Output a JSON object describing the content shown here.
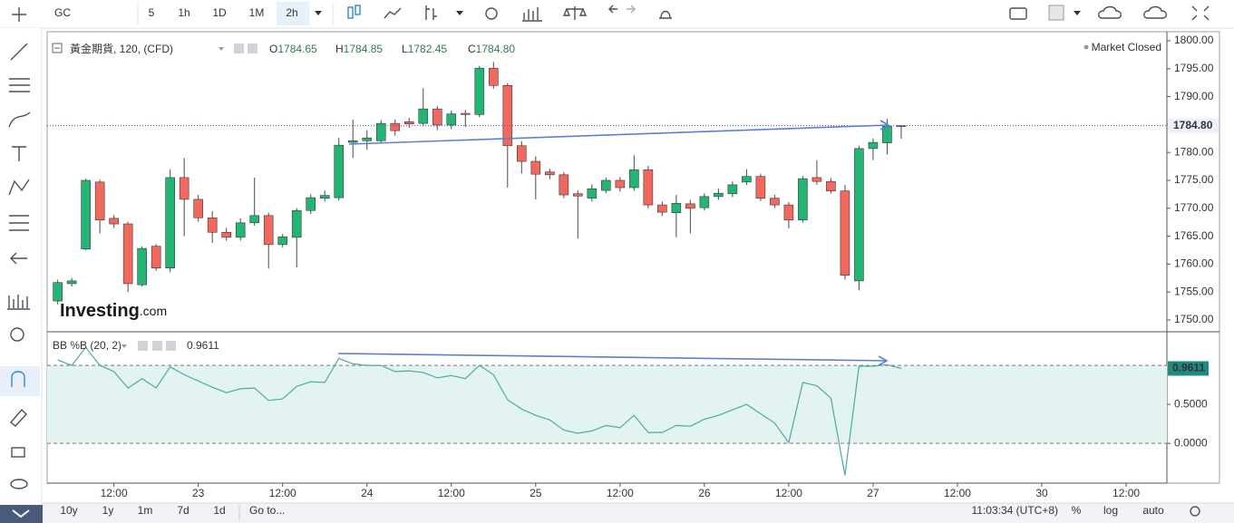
{
  "toolbar": {
    "symbol": "GC",
    "intervals": [
      "5",
      "1h",
      "1D",
      "1M",
      "2h"
    ],
    "active_interval": 4
  },
  "legend": {
    "title": "黃金期貨, 120, (CFD)",
    "ohlc": [
      {
        "label": "O",
        "value": "1784.65"
      },
      {
        "label": "H",
        "value": "1784.85"
      },
      {
        "label": "L",
        "value": "1782.45"
      },
      {
        "label": "C",
        "value": "1784.80"
      }
    ]
  },
  "market_status": "Market Closed",
  "watermark": {
    "brand": "Investing",
    "suffix": ".com"
  },
  "chart_data": [
    {
      "type": "candlestick",
      "x": [
        -20,
        -18,
        -16,
        -14,
        -12,
        -10,
        -8,
        -6,
        -4,
        -2,
        0,
        2,
        4,
        6,
        8,
        10,
        12,
        14,
        16,
        18,
        20,
        22,
        24,
        26,
        28,
        30,
        32,
        34,
        36,
        38,
        40,
        42,
        44,
        46,
        48,
        50,
        52,
        54,
        56,
        58,
        60,
        62,
        64,
        66,
        68,
        70,
        72,
        74,
        76,
        78,
        80,
        82,
        84,
        86,
        88,
        90,
        92,
        94,
        96,
        98,
        100
      ],
      "open": [
        1753.4,
        1756.5,
        1762.7,
        1774.7,
        1768.2,
        1767.2,
        1756.3,
        1763.2,
        1759.3,
        1775.5,
        1771.6,
        1768.3,
        1765.7,
        1764.8,
        1767.4,
        1768.7,
        1763.5,
        1764.8,
        1769.6,
        1771.8,
        1771.9,
        1781.8,
        1782.1,
        1782.1,
        1785.2,
        1785.5,
        1785.2,
        1787.8,
        1784.9,
        1787.0,
        1786.8,
        1795.1,
        1792.0,
        1781.2,
        1778.4,
        1776.5,
        1776.0,
        1772.6,
        1771.8,
        1773.2,
        1775.0,
        1773.7,
        1776.9,
        1770.6,
        1769.2,
        1770.8,
        1770.1,
        1772.1,
        1772.6,
        1774.7,
        1775.7,
        1771.8,
        1770.6,
        1767.9,
        1775.5,
        1774.8,
        1773.1,
        1757.0,
        1780.7,
        1781.7,
        1784.65
      ],
      "high": [
        1757.2,
        1757.5,
        1775.3,
        1775.1,
        1768.8,
        1767.6,
        1763.2,
        1763.6,
        1777.0,
        1779.0,
        1772.4,
        1769.5,
        1766.5,
        1768.2,
        1775.5,
        1769.2,
        1765.4,
        1770.0,
        1772.5,
        1773.2,
        1782.6,
        1785.9,
        1784.0,
        1785.8,
        1785.9,
        1786.2,
        1791.5,
        1788.3,
        1787.5,
        1787.6,
        1795.5,
        1796.2,
        1792.4,
        1782.0,
        1779.3,
        1777.1,
        1776.5,
        1773.2,
        1774.3,
        1775.5,
        1775.6,
        1779.5,
        1777.6,
        1771.2,
        1772.4,
        1771.5,
        1772.7,
        1773.5,
        1774.8,
        1777.0,
        1776.2,
        1772.4,
        1771.1,
        1775.8,
        1778.6,
        1775.4,
        1774.2,
        1781.2,
        1782.5,
        1786.0,
        1784.85
      ],
      "low": [
        1752.8,
        1756.0,
        1762.5,
        1765.5,
        1766.5,
        1755.0,
        1756.0,
        1758.8,
        1758.5,
        1765.0,
        1767.6,
        1763.8,
        1764.2,
        1764.2,
        1766.9,
        1759.2,
        1763.0,
        1759.4,
        1769.0,
        1771.2,
        1771.4,
        1779.0,
        1780.5,
        1781.6,
        1783.0,
        1784.4,
        1784.7,
        1784.0,
        1784.2,
        1784.6,
        1786.3,
        1791.4,
        1773.7,
        1776.2,
        1771.6,
        1775.2,
        1771.8,
        1764.6,
        1771.2,
        1772.7,
        1773.0,
        1773.1,
        1770.0,
        1768.6,
        1764.8,
        1765.5,
        1769.6,
        1771.5,
        1772.0,
        1774.2,
        1771.3,
        1770.1,
        1766.4,
        1767.4,
        1774.2,
        1772.6,
        1757.2,
        1755.3,
        1778.6,
        1779.6,
        1782.45
      ],
      "close": [
        1756.7,
        1757.0,
        1775.0,
        1767.9,
        1767.2,
        1756.5,
        1762.8,
        1759.3,
        1775.5,
        1771.6,
        1768.3,
        1765.7,
        1764.8,
        1767.4,
        1768.7,
        1763.5,
        1764.9,
        1769.6,
        1771.9,
        1772.3,
        1781.3,
        1782.1,
        1782.6,
        1785.2,
        1783.9,
        1785.1,
        1787.8,
        1784.9,
        1786.9,
        1786.8,
        1795.1,
        1792.0,
        1781.2,
        1778.4,
        1776.1,
        1776.0,
        1772.4,
        1772.2,
        1773.5,
        1775.0,
        1773.7,
        1776.9,
        1770.6,
        1769.3,
        1770.9,
        1770.0,
        1772.1,
        1772.7,
        1774.2,
        1775.7,
        1771.8,
        1770.6,
        1767.9,
        1775.3,
        1774.8,
        1773.1,
        1758.0,
        1780.7,
        1781.8,
        1784.7,
        1784.8
      ],
      "colors": {
        "up": "#22b573",
        "down": "#f2675e"
      },
      "xlim": [
        -21.5,
        137.8
      ],
      "xticks": [
        {
          "value": -12,
          "label": "12:00"
        },
        {
          "value": 0,
          "label": "23"
        },
        {
          "value": 12,
          "label": "12:00"
        },
        {
          "value": 24,
          "label": "24"
        },
        {
          "value": 36,
          "label": "12:00"
        },
        {
          "value": 48,
          "label": "25"
        },
        {
          "value": 60,
          "label": "12:00"
        },
        {
          "value": 72,
          "label": "26"
        },
        {
          "value": 84,
          "label": "12:00"
        },
        {
          "value": 96,
          "label": "27"
        },
        {
          "value": 108,
          "label": "12:00"
        },
        {
          "value": 120,
          "label": "30"
        },
        {
          "value": 132,
          "label": "12:00"
        }
      ],
      "ylim": [
        1748.05,
        1801.62
      ],
      "yticks": [
        {
          "value": 1750,
          "label": "1750.00"
        },
        {
          "value": 1755,
          "label": "1755.00"
        },
        {
          "value": 1760,
          "label": "1760.00"
        },
        {
          "value": 1765,
          "label": "1765.00"
        },
        {
          "value": 1770,
          "label": "1770.00"
        },
        {
          "value": 1775,
          "label": "1775.00"
        },
        {
          "value": 1780,
          "label": "1780.00"
        },
        {
          "value": 1785,
          "label": "1785.00"
        },
        {
          "value": 1790,
          "label": "1790.00"
        },
        {
          "value": 1795,
          "label": "1795.00"
        },
        {
          "value": 1800,
          "label": "1800.00"
        }
      ],
      "last_label": "1784.80"
    },
    {
      "type": "line",
      "title": "BB %B (20, 2)",
      "values": [
        1.07,
        1.0,
        1.23,
        1.0,
        0.92,
        0.71,
        0.83,
        0.71,
        0.98,
        0.88,
        0.8,
        0.72,
        0.65,
        0.7,
        0.71,
        0.55,
        0.57,
        0.73,
        0.79,
        0.78,
        1.09,
        1.02,
        1.0,
        1.0,
        0.92,
        0.93,
        0.91,
        0.84,
        0.87,
        0.83,
        1.0,
        0.88,
        0.56,
        0.44,
        0.36,
        0.3,
        0.17,
        0.13,
        0.16,
        0.23,
        0.2,
        0.36,
        0.14,
        0.14,
        0.23,
        0.22,
        0.31,
        0.36,
        0.43,
        0.5,
        0.38,
        0.26,
        0.01,
        0.78,
        0.74,
        0.58,
        -0.41,
        0.99,
        0.99,
        1.01,
        0.9611
      ],
      "last_label": "0.9611",
      "color": "#4eaaa2",
      "band_color": "#e3f3f1",
      "bands": [
        0,
        1
      ],
      "ylim": [
        -0.51,
        1.42
      ],
      "yticks": [
        {
          "value": 0,
          "label": "0.0000"
        },
        {
          "value": 0.5,
          "label": "0.5000"
        }
      ]
    }
  ],
  "bottom_bar": {
    "ranges": [
      "10y",
      "1y",
      "1m",
      "7d",
      "1d"
    ],
    "goto": "Go to...",
    "clock": "11:03:34 (UTC+8)",
    "options": [
      "%",
      "log",
      "auto"
    ],
    "active_option": 2
  }
}
